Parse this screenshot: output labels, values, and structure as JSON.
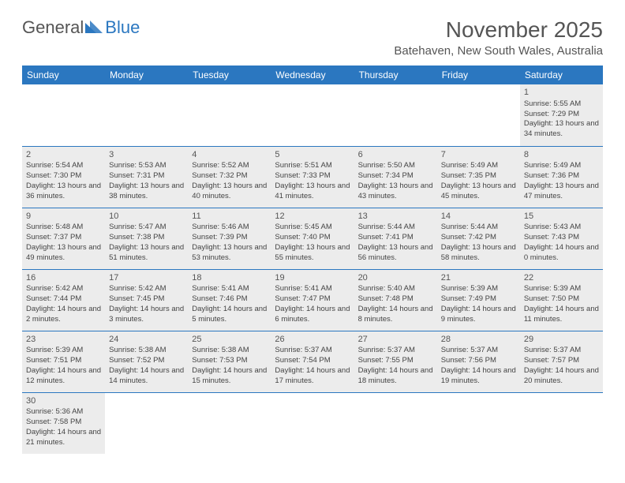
{
  "logo": {
    "part1": "General",
    "part2": "Blue"
  },
  "title": "November 2025",
  "location": "Batehaven, New South Wales, Australia",
  "colors": {
    "header_bg": "#2b77c0",
    "cell_bg": "#ececec",
    "text": "#444444"
  },
  "dayHeaders": [
    "Sunday",
    "Monday",
    "Tuesday",
    "Wednesday",
    "Thursday",
    "Friday",
    "Saturday"
  ],
  "leadingBlanks": 6,
  "days": [
    {
      "n": 1,
      "sr": "5:55 AM",
      "ss": "7:29 PM",
      "dl": "13 hours and 34 minutes."
    },
    {
      "n": 2,
      "sr": "5:54 AM",
      "ss": "7:30 PM",
      "dl": "13 hours and 36 minutes."
    },
    {
      "n": 3,
      "sr": "5:53 AM",
      "ss": "7:31 PM",
      "dl": "13 hours and 38 minutes."
    },
    {
      "n": 4,
      "sr": "5:52 AM",
      "ss": "7:32 PM",
      "dl": "13 hours and 40 minutes."
    },
    {
      "n": 5,
      "sr": "5:51 AM",
      "ss": "7:33 PM",
      "dl": "13 hours and 41 minutes."
    },
    {
      "n": 6,
      "sr": "5:50 AM",
      "ss": "7:34 PM",
      "dl": "13 hours and 43 minutes."
    },
    {
      "n": 7,
      "sr": "5:49 AM",
      "ss": "7:35 PM",
      "dl": "13 hours and 45 minutes."
    },
    {
      "n": 8,
      "sr": "5:49 AM",
      "ss": "7:36 PM",
      "dl": "13 hours and 47 minutes."
    },
    {
      "n": 9,
      "sr": "5:48 AM",
      "ss": "7:37 PM",
      "dl": "13 hours and 49 minutes."
    },
    {
      "n": 10,
      "sr": "5:47 AM",
      "ss": "7:38 PM",
      "dl": "13 hours and 51 minutes."
    },
    {
      "n": 11,
      "sr": "5:46 AM",
      "ss": "7:39 PM",
      "dl": "13 hours and 53 minutes."
    },
    {
      "n": 12,
      "sr": "5:45 AM",
      "ss": "7:40 PM",
      "dl": "13 hours and 55 minutes."
    },
    {
      "n": 13,
      "sr": "5:44 AM",
      "ss": "7:41 PM",
      "dl": "13 hours and 56 minutes."
    },
    {
      "n": 14,
      "sr": "5:44 AM",
      "ss": "7:42 PM",
      "dl": "13 hours and 58 minutes."
    },
    {
      "n": 15,
      "sr": "5:43 AM",
      "ss": "7:43 PM",
      "dl": "14 hours and 0 minutes."
    },
    {
      "n": 16,
      "sr": "5:42 AM",
      "ss": "7:44 PM",
      "dl": "14 hours and 2 minutes."
    },
    {
      "n": 17,
      "sr": "5:42 AM",
      "ss": "7:45 PM",
      "dl": "14 hours and 3 minutes."
    },
    {
      "n": 18,
      "sr": "5:41 AM",
      "ss": "7:46 PM",
      "dl": "14 hours and 5 minutes."
    },
    {
      "n": 19,
      "sr": "5:41 AM",
      "ss": "7:47 PM",
      "dl": "14 hours and 6 minutes."
    },
    {
      "n": 20,
      "sr": "5:40 AM",
      "ss": "7:48 PM",
      "dl": "14 hours and 8 minutes."
    },
    {
      "n": 21,
      "sr": "5:39 AM",
      "ss": "7:49 PM",
      "dl": "14 hours and 9 minutes."
    },
    {
      "n": 22,
      "sr": "5:39 AM",
      "ss": "7:50 PM",
      "dl": "14 hours and 11 minutes."
    },
    {
      "n": 23,
      "sr": "5:39 AM",
      "ss": "7:51 PM",
      "dl": "14 hours and 12 minutes."
    },
    {
      "n": 24,
      "sr": "5:38 AM",
      "ss": "7:52 PM",
      "dl": "14 hours and 14 minutes."
    },
    {
      "n": 25,
      "sr": "5:38 AM",
      "ss": "7:53 PM",
      "dl": "14 hours and 15 minutes."
    },
    {
      "n": 26,
      "sr": "5:37 AM",
      "ss": "7:54 PM",
      "dl": "14 hours and 17 minutes."
    },
    {
      "n": 27,
      "sr": "5:37 AM",
      "ss": "7:55 PM",
      "dl": "14 hours and 18 minutes."
    },
    {
      "n": 28,
      "sr": "5:37 AM",
      "ss": "7:56 PM",
      "dl": "14 hours and 19 minutes."
    },
    {
      "n": 29,
      "sr": "5:37 AM",
      "ss": "7:57 PM",
      "dl": "14 hours and 20 minutes."
    },
    {
      "n": 30,
      "sr": "5:36 AM",
      "ss": "7:58 PM",
      "dl": "14 hours and 21 minutes."
    }
  ],
  "labels": {
    "sunrise": "Sunrise:",
    "sunset": "Sunset:",
    "daylight": "Daylight:"
  }
}
